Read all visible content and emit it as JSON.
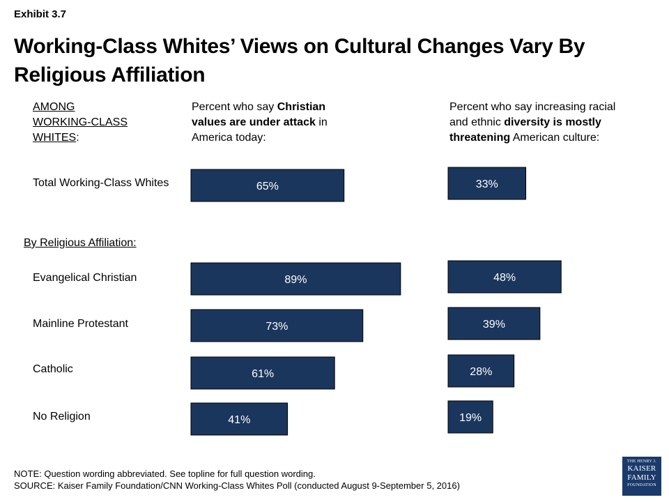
{
  "exhibit": "Exhibit 3.7",
  "title_line1": "Working-Class Whites’ Views on Cultural Changes Vary By",
  "title_line2": "Religious Affiliation",
  "among": {
    "line1": "AMONG",
    "line2": "WORKING-CLASS",
    "line3": "WHITES",
    "colon": ":"
  },
  "col1": {
    "pre": "Percent who say ",
    "bold1": "Christian",
    "bold2": "values are under attack",
    "post1": " in",
    "post2": "America today:"
  },
  "col2": {
    "line1": "Percent who say increasing racial",
    "pre2": "and ethnic ",
    "bold2": "diversity is mostly",
    "bold3": "threatening",
    "post3": " American culture:"
  },
  "section_label": "By Religious Affiliation:",
  "bar_color": "#1b365d",
  "chart_data": {
    "type": "bar",
    "categories": [
      "Total Working-Class Whites",
      "Evangelical Christian",
      "Mainline Protestant",
      "Catholic",
      "No Religion"
    ],
    "series": [
      {
        "name": "Percent who say Christian values are under attack in America today",
        "values": [
          65,
          89,
          73,
          61,
          41
        ],
        "labels": [
          "65%",
          "89%",
          "73%",
          "61%",
          "41%"
        ]
      },
      {
        "name": "Percent who say increasing racial and ethnic diversity is mostly threatening American culture",
        "values": [
          33,
          48,
          39,
          28,
          19
        ],
        "labels": [
          "33%",
          "48%",
          "39%",
          "28%",
          "19%"
        ]
      }
    ]
  },
  "note": "NOTE: Question wording abbreviated. See topline for full question wording.",
  "source": "SOURCE: Kaiser Family Foundation/CNN Working-Class Whites Poll (conducted August 9-September 5, 2016)",
  "logo": {
    "top": "THE HENRY J.",
    "l1": "KAISER",
    "l2": "FAMILY",
    "bottom": "FOUNDATION"
  }
}
